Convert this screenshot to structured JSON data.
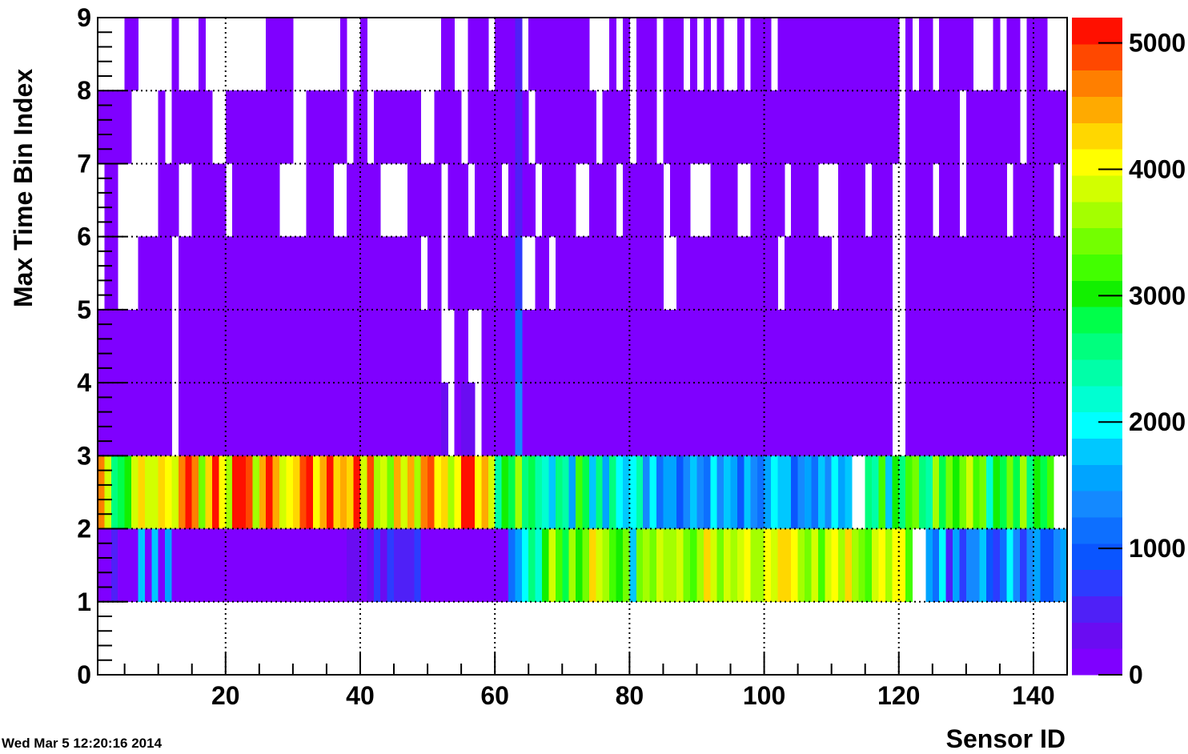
{
  "chart_data": {
    "type": "heatmap",
    "title": "",
    "xlabel": "Sensor ID",
    "ylabel": "Max Time Bin Index",
    "xlim": [
      1,
      145
    ],
    "ylim": [
      0,
      9
    ],
    "x_ticks": [
      "20",
      "40",
      "60",
      "80",
      "100",
      "120",
      "140"
    ],
    "y_ticks": [
      "0",
      "1",
      "2",
      "3",
      "4",
      "5",
      "6",
      "7",
      "8",
      "9"
    ],
    "zlim": [
      0,
      5200
    ],
    "z_ticks": [
      "0",
      "1000",
      "2000",
      "3000",
      "4000",
      "5000"
    ],
    "grid": true,
    "palette": [
      "#7f00ff",
      "#6a0cf2",
      "#4f20f7",
      "#2c3cff",
      "#0a55ff",
      "#0d6fff",
      "#1489ff",
      "#00a4ff",
      "#00c8ff",
      "#00ffff",
      "#00ffd2",
      "#00ffa8",
      "#00ff7e",
      "#00ff4a",
      "#12f000",
      "#42ff00",
      "#73ff00",
      "#a4ff00",
      "#d2ff00",
      "#ffff00",
      "#ffd700",
      "#ffaa00",
      "#ff7f00",
      "#ff4800",
      "#ff1000"
    ],
    "columns_x_start": 2,
    "columns_x_end": 145,
    "rows": {
      "bin_1_2": [
        180,
        180,
        600,
        180,
        100,
        20,
        1800,
        60,
        1800,
        60,
        1500,
        60,
        20,
        20,
        20,
        20,
        20,
        120,
        120,
        20,
        20,
        20,
        20,
        20,
        20,
        20,
        20,
        20,
        20,
        20,
        20,
        20,
        20,
        20,
        20,
        20,
        20,
        300,
        300,
        20,
        300,
        700,
        300,
        700,
        500,
        500,
        500,
        700,
        20,
        20,
        20,
        20,
        20,
        20,
        20,
        20,
        20,
        20,
        20,
        20,
        20,
        1200,
        1600,
        2000,
        2600,
        2200,
        3000,
        3800,
        3200,
        2800,
        3600,
        3000,
        3400,
        4200,
        3800,
        3600,
        3300,
        3000,
        3400,
        1800,
        3500,
        3700,
        3400,
        3900,
        3600,
        3700,
        3900,
        3400,
        3200,
        3600,
        4200,
        3800,
        3400,
        3900,
        3600,
        3800,
        4100,
        3700,
        3600,
        4000,
        3800,
        4200,
        4200,
        4000,
        3700,
        3500,
        3900,
        3300,
        3800,
        4000,
        3600,
        4200,
        3700,
        3500,
        3300,
        3800,
        4000,
        3600,
        4100,
        4000,
        3300,
        null,
        null,
        1500,
        1100,
        2000,
        600,
        1600,
        800,
        1300,
        1400,
        1700,
        900,
        700,
        1200,
        1900,
        1400,
        800,
        1300,
        1600,
        1000,
        900,
        1300,
        1500
      ],
      "bin_2_3": [
        4600,
        3800,
        2500,
        2800,
        3000,
        3800,
        4200,
        3800,
        3900,
        4200,
        4000,
        3900,
        4600,
        5200,
        4600,
        3400,
        4200,
        5000,
        4000,
        3600,
        5200,
        5200,
        4800,
        3700,
        4400,
        5000,
        4400,
        3800,
        4000,
        4200,
        4800,
        5200,
        4000,
        4400,
        5000,
        4200,
        4400,
        4200,
        5200,
        3800,
        4800,
        3600,
        3800,
        3400,
        4400,
        3800,
        4400,
        3600,
        4600,
        4800,
        4000,
        4200,
        3600,
        4000,
        5200,
        5000,
        4000,
        4400,
        3800,
        2400,
        3000,
        2800,
        3600,
        2600,
        2800,
        2400,
        2200,
        1800,
        2600,
        2400,
        1500,
        3200,
        2800,
        1700,
        2500,
        1600,
        2500,
        2000,
        1800,
        1900,
        2400,
        1400,
        1900,
        1200,
        1600,
        1500,
        900,
        1300,
        1700,
        1400,
        1100,
        1900,
        1300,
        1700,
        1600,
        1000,
        1800,
        1400,
        1200,
        1500,
        1900,
        1700,
        1800,
        1000,
        1300,
        1500,
        1200,
        1800,
        1400,
        1900,
        1600,
        1800,
        null,
        null,
        2600,
        2400,
        3200,
        1800,
        3000,
        2600,
        3200,
        3500,
        2700,
        2400,
        3600,
        2900,
        3400,
        3000,
        3500,
        3800,
        3200,
        3400,
        2200,
        3000,
        2800,
        3400,
        2800,
        3600,
        2600,
        3000,
        2800,
        3300
      ]
    },
    "upper_bins": [
      [
        3,
        5,
        "purple",
        [
          1,
          2,
          3,
          4,
          5,
          6,
          7,
          8,
          9,
          10,
          11,
          13,
          14,
          15,
          16,
          17,
          18,
          19,
          20,
          21,
          22,
          23,
          24,
          25,
          26,
          27,
          28,
          29,
          30,
          31,
          32,
          33,
          34,
          35,
          36,
          37,
          38,
          39,
          40,
          41,
          42,
          43,
          44,
          45,
          46,
          47,
          48,
          49,
          50,
          51,
          54,
          55,
          58,
          59,
          60,
          61,
          62,
          63,
          64,
          65,
          66,
          67,
          68,
          69,
          70,
          71,
          72,
          73,
          74,
          75,
          76,
          77,
          78,
          79,
          80,
          81,
          82,
          83,
          84,
          85,
          86,
          87,
          88,
          89,
          90,
          91,
          92,
          93,
          94,
          95,
          96,
          97,
          98,
          99,
          100,
          101,
          102,
          103,
          104,
          105,
          106,
          107,
          108,
          109,
          110,
          111,
          112,
          113,
          114,
          115,
          116,
          117,
          118,
          121,
          122,
          123,
          124,
          125,
          126,
          127,
          128,
          129,
          130,
          131,
          132,
          133,
          134,
          135,
          136,
          137,
          138,
          139,
          140,
          141,
          142,
          143,
          144
        ]
      ],
      [
        5,
        6,
        "purple",
        [
          2,
          3,
          7,
          8,
          9,
          10,
          11,
          13,
          14,
          15,
          16,
          17,
          18,
          19,
          20,
          21,
          22,
          23,
          24,
          25,
          26,
          27,
          28,
          29,
          30,
          31,
          32,
          33,
          34,
          35,
          36,
          37,
          38,
          39,
          40,
          41,
          42,
          43,
          44,
          45,
          46,
          47,
          48,
          50,
          51,
          53,
          54,
          55,
          56,
          57,
          58,
          59,
          60,
          61,
          62,
          63,
          66,
          67,
          69,
          70,
          71,
          72,
          73,
          74,
          75,
          76,
          77,
          78,
          79,
          80,
          81,
          82,
          83,
          84,
          87,
          88,
          89,
          90,
          91,
          92,
          93,
          94,
          95,
          96,
          97,
          98,
          99,
          100,
          101,
          103,
          104,
          105,
          106,
          107,
          108,
          109,
          111,
          112,
          113,
          114,
          115,
          116,
          117,
          118,
          121,
          122,
          123,
          124,
          125,
          126,
          127,
          128,
          129,
          130,
          131,
          132,
          133,
          134,
          135,
          136,
          137,
          138,
          139,
          140,
          141,
          142,
          143,
          144
        ]
      ],
      [
        6,
        7,
        "purple",
        [
          2,
          3,
          10,
          11,
          12,
          15,
          16,
          17,
          18,
          19,
          21,
          22,
          23,
          24,
          25,
          26,
          27,
          32,
          33,
          34,
          35,
          38,
          39,
          40,
          41,
          42,
          47,
          48,
          49,
          50,
          51,
          53,
          54,
          55,
          57,
          58,
          59,
          60,
          62,
          63,
          64,
          65,
          67,
          68,
          69,
          70,
          71,
          74,
          75,
          76,
          77,
          79,
          80,
          81,
          82,
          83,
          84,
          86,
          87,
          88,
          92,
          93,
          94,
          95,
          98,
          99,
          100,
          101,
          102,
          104,
          105,
          106,
          107,
          111,
          112,
          113,
          114,
          116,
          117,
          118,
          121,
          122,
          123,
          124,
          126,
          127,
          128,
          130,
          131,
          132,
          133,
          134,
          135,
          137,
          138,
          139,
          140,
          141,
          142,
          144
        ]
      ],
      [
        7,
        8,
        "purple",
        [
          1,
          2,
          3,
          4,
          5,
          10,
          12,
          13,
          14,
          15,
          16,
          17,
          20,
          21,
          22,
          23,
          24,
          25,
          26,
          27,
          28,
          29,
          32,
          33,
          34,
          35,
          36,
          37,
          39,
          40,
          42,
          43,
          44,
          45,
          46,
          47,
          48,
          51,
          52,
          53,
          54,
          56,
          57,
          58,
          59,
          60,
          61,
          62,
          63,
          64,
          66,
          67,
          68,
          69,
          70,
          71,
          72,
          73,
          74,
          76,
          77,
          78,
          79,
          81,
          82,
          83,
          85,
          86,
          87,
          88,
          89,
          90,
          91,
          92,
          93,
          94,
          95,
          96,
          97,
          98,
          99,
          100,
          101,
          102,
          103,
          104,
          105,
          106,
          107,
          108,
          109,
          110,
          111,
          112,
          113,
          114,
          115,
          116,
          117,
          118,
          119,
          121,
          122,
          123,
          124,
          125,
          126,
          127,
          128,
          130,
          131,
          132,
          133,
          134,
          135,
          136,
          137,
          139,
          140,
          141,
          142,
          143,
          144
        ]
      ],
      [
        8,
        9,
        "purple",
        [
          5,
          6,
          12,
          16,
          26,
          27,
          28,
          29,
          37,
          40,
          52,
          53,
          56,
          57,
          58,
          60,
          61,
          62,
          65,
          66,
          67,
          68,
          69,
          70,
          71,
          72,
          73,
          77,
          79,
          81,
          82,
          83,
          85,
          86,
          87,
          89,
          91,
          93,
          96,
          98,
          99,
          100,
          102,
          103,
          104,
          105,
          106,
          107,
          108,
          109,
          110,
          111,
          112,
          113,
          114,
          115,
          116,
          117,
          118,
          119,
          121,
          123,
          124,
          126,
          127,
          128,
          129,
          130,
          134,
          136,
          137,
          139,
          140,
          141
        ]
      ]
    ],
    "highlight_cells": [
      {
        "x": 64,
        "y0": 3,
        "y1": 4,
        "value": 1400
      },
      {
        "x": 64,
        "y0": 4,
        "y1": 5,
        "value": 1100
      },
      {
        "x": 64,
        "y0": 5,
        "y1": 6,
        "value": 800
      },
      {
        "x": 64,
        "y0": 6,
        "y1": 9,
        "value": 500
      },
      {
        "x": 53,
        "y0": 3,
        "y1": 4,
        "value": 250
      },
      {
        "x": 56,
        "y0": 3,
        "y1": 4,
        "value": 250
      },
      {
        "x": 57,
        "y0": 3,
        "y1": 4,
        "value": 250
      }
    ]
  },
  "timestamp": "Wed Mar  5 12:20:16 2014"
}
